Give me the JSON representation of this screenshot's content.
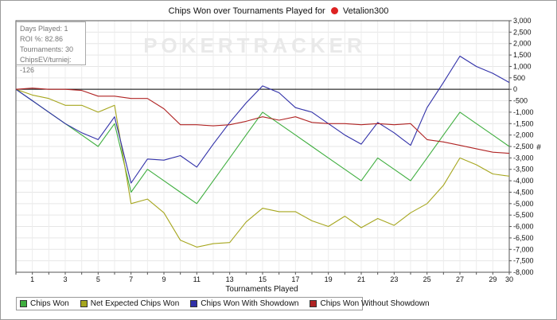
{
  "title": {
    "text": "Chips Won over Tournaments Played for",
    "player": "Vetalion300",
    "player_icon": "poker-chip-icon"
  },
  "watermark": "POKERTRACKER",
  "stats": [
    {
      "label": "Days Played",
      "value": "1"
    },
    {
      "label": "ROI %",
      "value": "82.86"
    },
    {
      "label": "Tournaments",
      "value": "30"
    },
    {
      "label": "ChipsEV/turniej",
      "value": "-126"
    }
  ],
  "chart_data": {
    "type": "line",
    "title": "Chips Won over Tournaments Played for Vetalion300",
    "xlabel": "Tournaments Played",
    "ylabel": "#",
    "xlim": [
      0,
      30
    ],
    "ylim": [
      -8000,
      3000
    ],
    "xticks": [
      "1",
      "3",
      "5",
      "7",
      "9",
      "11",
      "13",
      "15",
      "17",
      "19",
      "21",
      "23",
      "25",
      "27",
      "29",
      "30"
    ],
    "xtick_values": [
      1,
      3,
      5,
      7,
      9,
      11,
      13,
      15,
      17,
      19,
      21,
      23,
      25,
      27,
      29,
      30
    ],
    "yticks": [
      "3,000",
      "2,500",
      "2,000",
      "1,500",
      "1,000",
      "500",
      "0",
      "-500",
      "-1,000",
      "-1,500",
      "-2,000",
      "-2,500",
      "-3,000",
      "-3,500",
      "-4,000",
      "-4,500",
      "-5,000",
      "-5,500",
      "-6,000",
      "-6,500",
      "-7,000",
      "-7,500",
      "-8,000"
    ],
    "ytick_values": [
      3000,
      2500,
      2000,
      1500,
      1000,
      500,
      0,
      -500,
      -1000,
      -1500,
      -2000,
      -2500,
      -3000,
      -3500,
      -4000,
      -4500,
      -5000,
      -5500,
      -6000,
      -6500,
      -7000,
      -7500,
      -8000
    ],
    "grid": true,
    "legend_position": "bottom-left",
    "x": [
      0,
      1,
      2,
      3,
      4,
      5,
      6,
      7,
      8,
      9,
      10,
      11,
      12,
      13,
      14,
      15,
      16,
      17,
      18,
      19,
      20,
      21,
      22,
      23,
      24,
      25,
      26,
      27,
      28,
      29,
      30
    ],
    "series": [
      {
        "name": "Chips Won",
        "color": "#3fae3f",
        "values": [
          0,
          -500,
          -1000,
          -1500,
          -2000,
          -2500,
          -1500,
          -4500,
          -3500,
          -4000,
          -4500,
          -5000,
          -4000,
          -3000,
          -2000,
          -1000,
          -1500,
          -2000,
          -2500,
          -3000,
          -3500,
          -4000,
          -3000,
          -3500,
          -4000,
          -3000,
          -2000,
          -1000,
          -1500,
          -2000,
          -2500
        ]
      },
      {
        "name": "Net Expected Chips Won",
        "color": "#a6a61e",
        "values": [
          0,
          -250,
          -400,
          -700,
          -700,
          -1000,
          -700,
          -5000,
          -4800,
          -5400,
          -6600,
          -6900,
          -6750,
          -6700,
          -5800,
          -5200,
          -5350,
          -5350,
          -5750,
          -6000,
          -5550,
          -6050,
          -5650,
          -5950,
          -5400,
          -5000,
          -4200,
          -3000,
          -3300,
          -3700,
          -3800
        ]
      },
      {
        "name": "Chips Won With Showdown",
        "color": "#3030a8",
        "values": [
          0,
          -500,
          -1000,
          -1500,
          -1900,
          -2200,
          -1200,
          -4100,
          -3050,
          -3100,
          -2900,
          -3400,
          -2400,
          -1450,
          -600,
          150,
          -150,
          -800,
          -1000,
          -1500,
          -2000,
          -2400,
          -1450,
          -1900,
          -2450,
          -800,
          300,
          1450,
          1000,
          700,
          300
        ]
      },
      {
        "name": "Chips Won Without Showdown",
        "color": "#b02424",
        "values": [
          0,
          50,
          0,
          0,
          -50,
          -300,
          -300,
          -400,
          -400,
          -850,
          -1550,
          -1550,
          -1600,
          -1550,
          -1400,
          -1200,
          -1350,
          -1200,
          -1450,
          -1500,
          -1500,
          -1550,
          -1500,
          -1550,
          -1500,
          -2200,
          -2300,
          -2450,
          -2600,
          -2750,
          -2800
        ]
      }
    ]
  }
}
